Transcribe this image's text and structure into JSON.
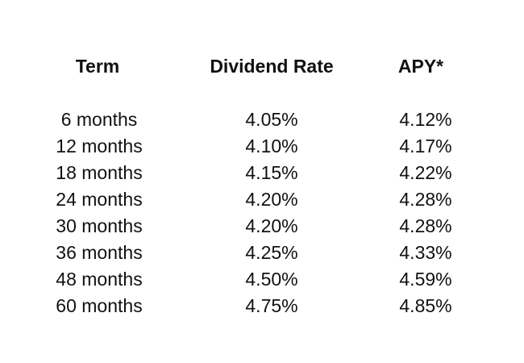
{
  "table": {
    "headers": {
      "term": "Term",
      "dividend_rate": "Dividend Rate",
      "apy": "APY*"
    },
    "rows": [
      {
        "term": "6 months",
        "dividend_rate": "4.05%",
        "apy": "4.12%"
      },
      {
        "term": "12 months",
        "dividend_rate": "4.10%",
        "apy": "4.17%"
      },
      {
        "term": "18 months",
        "dividend_rate": "4.15%",
        "apy": "4.22%"
      },
      {
        "term": "24 months",
        "dividend_rate": "4.20%",
        "apy": "4.28%"
      },
      {
        "term": "30 months",
        "dividend_rate": "4.20%",
        "apy": "4.28%"
      },
      {
        "term": "36 months",
        "dividend_rate": "4.25%",
        "apy": "4.33%"
      },
      {
        "term": "48 months",
        "dividend_rate": "4.50%",
        "apy": "4.59%"
      },
      {
        "term": "60 months",
        "dividend_rate": "4.75%",
        "apy": "4.85%"
      }
    ]
  }
}
